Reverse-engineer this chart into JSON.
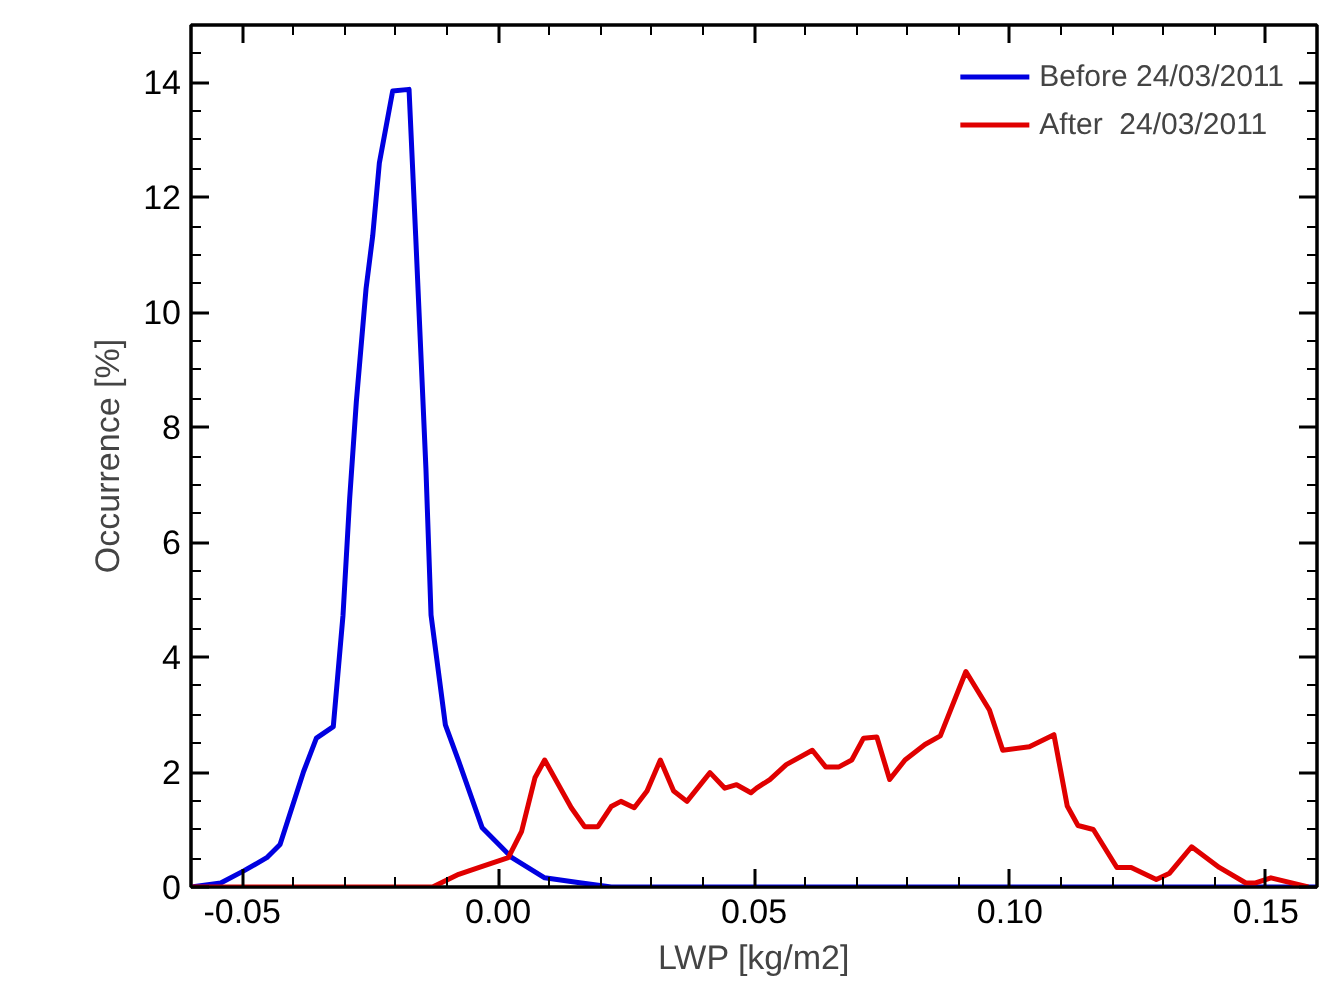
{
  "chart_data": {
    "type": "line",
    "xlabel": "LWP [kg/m2]",
    "ylabel": "Occurrence [%]",
    "xlim": [
      -0.06,
      0.16
    ],
    "ylim": [
      0,
      15
    ],
    "xticks": [
      {
        "value": -0.05,
        "label": "-0.05"
      },
      {
        "value": 0,
        "label": "0.00"
      },
      {
        "value": 0.05,
        "label": "0.05"
      },
      {
        "value": 0.1,
        "label": "0.10"
      },
      {
        "value": 0.15,
        "label": "0.15"
      }
    ],
    "yticks": [
      0,
      2,
      4,
      6,
      8,
      10,
      12,
      14
    ],
    "grid": false,
    "legend": "top right",
    "marker": "none",
    "line_style": "solid",
    "series": [
      {
        "name": "Before 24/03/2011",
        "color": "#0000e0",
        "x": [
          -0.06,
          -0.0542,
          -0.0497,
          -0.0452,
          -0.0426,
          -0.038,
          -0.0355,
          -0.0322,
          -0.0303,
          -0.029,
          -0.0277,
          -0.0258,
          -0.0245,
          -0.0232,
          -0.0206,
          -0.0174,
          -0.0161,
          -0.0141,
          -0.0131,
          -0.0103,
          -0.0077,
          -0.0031,
          0.0027,
          0.0091,
          0.0156,
          0.0221,
          0.16
        ],
        "values": [
          0,
          0.07,
          0.28,
          0.51,
          0.74,
          2.01,
          2.59,
          2.79,
          4.73,
          6.76,
          8.44,
          10.41,
          11.33,
          12.6,
          13.85,
          13.88,
          11.33,
          7.28,
          4.73,
          2.82,
          2.19,
          1.03,
          0.51,
          0.16,
          0.08,
          0,
          0
        ]
      },
      {
        "name": "After  24/03/2011",
        "color": "#e00000",
        "x": [
          -0.06,
          -0.0128,
          -0.0077,
          -0.0031,
          0.002,
          0.0046,
          0.0072,
          0.0091,
          0.0143,
          0.0169,
          0.0195,
          0.0221,
          0.024,
          0.0266,
          0.0291,
          0.0317,
          0.0343,
          0.0369,
          0.0414,
          0.0443,
          0.0466,
          0.0494,
          0.0505,
          0.0531,
          0.0563,
          0.0614,
          0.064,
          0.0666,
          0.0691,
          0.0714,
          0.074,
          0.0765,
          0.0795,
          0.0834,
          0.0864,
          0.0914,
          0.096,
          0.0986,
          0.1038,
          0.1086,
          0.1112,
          0.1133,
          0.1163,
          0.1209,
          0.1237,
          0.1286,
          0.1312,
          0.1355,
          0.1409,
          0.1461,
          0.148,
          0.151,
          0.1583
        ],
        "values": [
          0,
          0,
          0.22,
          0.36,
          0.51,
          0.97,
          1.9,
          2.21,
          1.38,
          1.05,
          1.05,
          1.4,
          1.49,
          1.38,
          1.67,
          2.21,
          1.67,
          1.49,
          1.99,
          1.72,
          1.78,
          1.64,
          1.72,
          1.87,
          2.13,
          2.38,
          2.09,
          2.09,
          2.21,
          2.59,
          2.61,
          1.87,
          2.21,
          2.48,
          2.63,
          3.75,
          3.08,
          2.38,
          2.44,
          2.65,
          1.41,
          1.07,
          1.0,
          0.34,
          0.34,
          0.13,
          0.24,
          0.7,
          0.34,
          0.07,
          0.07,
          0.16,
          0
        ]
      }
    ]
  }
}
